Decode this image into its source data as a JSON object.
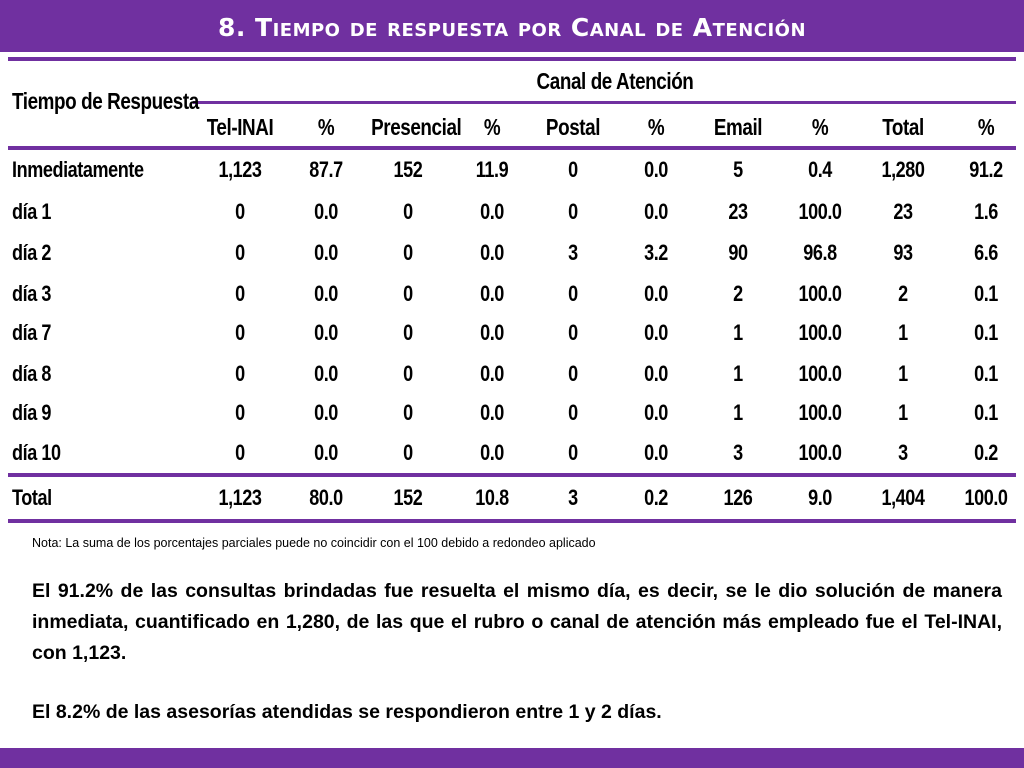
{
  "title": "8. Tiempo de respuesta por Canal de Atención",
  "table": {
    "row_header": "Tiempo de Respuesta",
    "group_header": "Canal de Atención",
    "columns": [
      "Tel-INAI",
      "%",
      "Presencial",
      "%",
      "Postal",
      "%",
      "Email",
      "%",
      "Total",
      "%"
    ],
    "rows": [
      {
        "label": "Inmediatamente",
        "values": [
          "1,123",
          "87.7",
          "152",
          "11.9",
          "0",
          "0.0",
          "5",
          "0.4",
          "1,280",
          "91.2"
        ]
      },
      {
        "label": "día 1",
        "values": [
          "0",
          "0.0",
          "0",
          "0.0",
          "0",
          "0.0",
          "23",
          "100.0",
          "23",
          "1.6"
        ]
      },
      {
        "label": "día 2",
        "values": [
          "0",
          "0.0",
          "0",
          "0.0",
          "3",
          "3.2",
          "90",
          "96.8",
          "93",
          "6.6"
        ]
      },
      {
        "label": "día 3",
        "values": [
          "0",
          "0.0",
          "0",
          "0.0",
          "0",
          "0.0",
          "2",
          "100.0",
          "2",
          "0.1"
        ]
      },
      {
        "label": "día 7",
        "values": [
          "0",
          "0.0",
          "0",
          "0.0",
          "0",
          "0.0",
          "1",
          "100.0",
          "1",
          "0.1"
        ]
      },
      {
        "label": "día 8",
        "values": [
          "0",
          "0.0",
          "0",
          "0.0",
          "0",
          "0.0",
          "1",
          "100.0",
          "1",
          "0.1"
        ]
      },
      {
        "label": "día 9",
        "values": [
          "0",
          "0.0",
          "0",
          "0.0",
          "0",
          "0.0",
          "1",
          "100.0",
          "1",
          "0.1"
        ]
      },
      {
        "label": "día 10",
        "values": [
          "0",
          "0.0",
          "0",
          "0.0",
          "0",
          "0.0",
          "3",
          "100.0",
          "3",
          "0.2"
        ]
      }
    ],
    "total": {
      "label": "Total",
      "values": [
        "1,123",
        "80.0",
        "152",
        "10.8",
        "3",
        "0.2",
        "126",
        "9.0",
        "1,404",
        "100.0"
      ]
    }
  },
  "note": "Nota: La suma de los porcentajes parciales puede no coincidir con el 100 debido a redondeo aplicado",
  "paragraphs": [
    "El 91.2% de las consultas brindadas fue resuelta el mismo día, es decir, se le dio solución de manera inmediata, cuantificado en 1,280, de las que el rubro o canal de atención más empleado fue el Tel-INAI, con 1,123.",
    "El 8.2% de las asesorías atendidas se respondieron entre 1 y 2 días."
  ],
  "colors": {
    "accent": "#7030a0"
  }
}
